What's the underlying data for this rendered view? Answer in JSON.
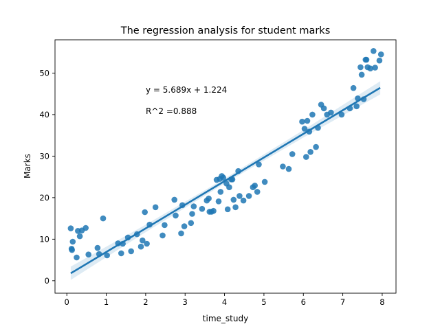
{
  "chart_data": {
    "type": "scatter",
    "title": "The regression analysis for student marks",
    "xlabel": "time_study",
    "ylabel": "Marks",
    "xlim": [
      -0.3,
      8.35
    ],
    "ylim": [
      -3,
      58
    ],
    "x_ticks": [
      0,
      1,
      2,
      3,
      4,
      5,
      6,
      7,
      8
    ],
    "y_ticks": [
      0,
      10,
      20,
      30,
      40,
      50
    ],
    "grid": false,
    "legend": "none",
    "annotations": [
      "y = 5.689x + 1.224",
      "R^2 =0.888"
    ],
    "regression": {
      "slope": 5.689,
      "intercept": 1.224,
      "x_range": [
        0.1,
        7.95
      ]
    },
    "confidence_band_halfwidth": {
      "x": [
        0.1,
        2,
        4,
        6,
        7.95
      ],
      "half": [
        1.6,
        0.9,
        0.6,
        0.9,
        1.6
      ]
    },
    "series": [
      {
        "x": [
          0.1,
          0.12,
          0.15,
          0.13,
          0.25,
          0.28,
          0.33,
          0.38,
          0.48,
          0.55,
          0.78,
          0.82,
          0.92,
          1.02,
          1.3,
          1.38,
          1.42,
          1.55,
          1.63,
          1.78,
          1.88,
          1.92,
          1.98,
          2.03,
          2.1,
          2.25,
          2.43,
          2.48,
          2.73,
          2.76,
          2.9,
          2.93,
          2.98,
          3.15,
          3.18,
          3.22,
          3.43,
          3.55,
          3.6,
          3.62,
          3.67,
          3.72,
          3.8,
          3.85,
          3.88,
          3.9,
          3.93,
          3.97,
          4.05,
          4.08,
          4.12,
          4.17,
          4.2,
          4.23,
          4.28,
          4.35,
          4.38,
          4.48,
          4.62,
          4.72,
          4.77,
          4.83,
          4.87,
          5.02,
          5.48,
          5.63,
          5.72,
          5.97,
          6.03,
          6.07,
          6.1,
          6.15,
          6.18,
          6.23,
          6.32,
          6.37,
          6.45,
          6.52,
          6.6,
          6.7,
          6.97,
          7.18,
          7.27,
          7.35,
          7.38,
          7.45,
          7.48,
          7.53,
          7.58,
          7.6,
          7.63,
          7.7,
          7.78,
          7.82,
          7.93,
          7.97
        ],
        "y": [
          12.6,
          7.7,
          9.4,
          7.4,
          5.6,
          12.0,
          10.7,
          12.1,
          12.7,
          6.3,
          7.9,
          6.4,
          15.0,
          6.1,
          9.0,
          6.6,
          8.9,
          10.4,
          7.1,
          11.2,
          8.2,
          9.7,
          16.5,
          8.9,
          13.5,
          17.7,
          10.9,
          13.4,
          19.5,
          15.7,
          11.4,
          18.2,
          13.1,
          13.9,
          16.1,
          17.9,
          17.3,
          19.3,
          19.8,
          16.6,
          16.6,
          16.8,
          24.3,
          19.1,
          24.5,
          21.4,
          25.2,
          24.8,
          23.4,
          17.2,
          22.5,
          24.4,
          24.4,
          19.5,
          17.7,
          26.4,
          20.4,
          19.3,
          20.4,
          22.5,
          22.9,
          21.4,
          28.0,
          23.8,
          27.5,
          26.9,
          30.5,
          38.3,
          36.6,
          29.8,
          38.5,
          35.9,
          31.0,
          40.0,
          32.2,
          36.8,
          42.4,
          41.5,
          40.0,
          40.5,
          40.0,
          41.5,
          46.4,
          42.0,
          43.9,
          51.4,
          49.6,
          43.7,
          53.2,
          53.2,
          51.4,
          51.1,
          55.3,
          51.3,
          53.0,
          54.5
        ]
      }
    ]
  }
}
